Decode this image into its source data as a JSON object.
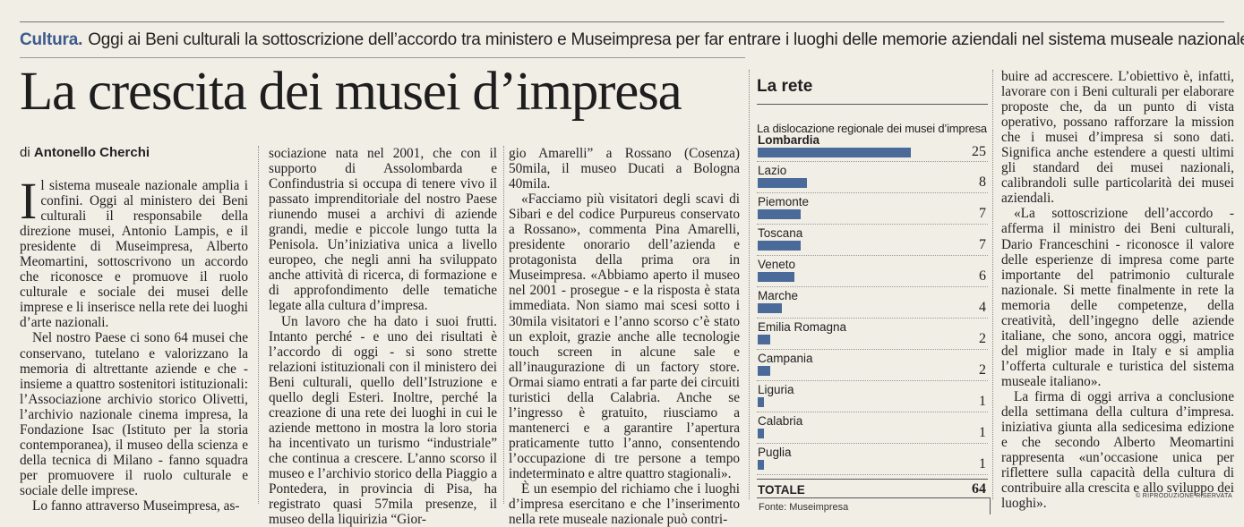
{
  "kicker": {
    "section": "Cultura.",
    "text": "Oggi ai Beni culturali la sottoscrizione dell’accordo tra ministero e Museimpresa per far entrare i luoghi delle memorie aziendali nel sistema museale nazionale"
  },
  "headline": "La crescita dei musei d’impresa",
  "byline": {
    "prefix": "di",
    "author": "Antonello Cherchi"
  },
  "article": {
    "dropcap": "I",
    "col1": [
      "l sistema museale nazionale amplia i confini. Oggi al ministero dei Beni culturali il responsabile della direzione musei, Antonio Lampis, e il presidente di Museimpresa, Alberto Meomartini, sottoscrivono un accordo che riconosce e promuove il ruolo culturale e sociale dei musei delle imprese e li inserisce nella rete dei luoghi d’arte nazionali.",
      "Nel nostro Paese ci sono 64 musei che conservano, tutelano e valorizzano la memoria di altrettante aziende e che - insieme a quattro sostenitori istituzionali: l’Associazione archivio storico Olivetti, l’archivio nazionale cinema impresa, la Fondazione Isac (Istituto per la storia contemporanea), il museo della scienza e della tecnica di Milano - fanno squadra per promuovere il ruolo culturale e sociale delle imprese.",
      "Lo fanno attraverso Museimpresa, as-"
    ],
    "col2": [
      "sociazione nata nel 2001, che con il supporto di Assolombarda e Confindustria si occupa di tenere vivo il passato imprenditoriale del nostro Paese riunendo musei a archivi di aziende grandi, medie e piccole lungo tutta la Penisola. Un’iniziativa unica a livello europeo, che negli anni ha sviluppato anche attività di ricerca, di formazione e di approfondimento delle tematiche legate alla cultura d’impresa.",
      "Un lavoro che ha dato i suoi frutti. Intanto perché - e uno dei risultati è l’accordo di oggi - si sono strette relazioni istituzionali con il ministero dei Beni culturali, quello dell’Istruzione e quello degli Esteri. Inoltre, perché la creazione di una rete dei luoghi in cui le aziende mettono in mostra la loro storia ha incentivato un turismo “industriale” che continua a crescere. L’anno scorso il museo e l’archivio storico della Piaggio a Pontedera, in provincia di Pisa, ha registrato quasi 57mila presenze, il museo della liquirizia “Gior-"
    ],
    "col3": [
      "gio Amarelli” a Rossano (Cosenza) 50mila, il museo Ducati a Bologna 40mila.",
      "«Facciamo più visitatori degli scavi di Sibari e del codice Purpureus conservato a Rossano», commenta Pina Amarelli, presidente onorario dell’azienda e protagonista della prima ora in Museimpresa. «Abbiamo aperto il museo nel 2001 - prosegue - e la risposta è stata immediata. Non siamo mai scesi sotto i 30mila visitatori e l’anno scorso c’è stato un exploit, grazie anche alle tecnologie touch screen in alcune sale e all’inaugurazione di un factory store. Ormai siamo entrati a far parte dei circuiti turistici della Calabria. Anche se l’ingresso è gratuito, riusciamo a mantenerci e a garantire l’apertura praticamente tutto l’anno, consentendo l’occupazione di tre persone a tempo indeterminato e altre quattro stagionali».",
      "È un esempio del richiamo che i luoghi d’impresa esercitano e che l’inserimento nella rete museale nazionale può contri-"
    ],
    "col4": [
      "buire ad accrescere. L’obiettivo è, infatti, lavorare con i Beni culturali per elaborare proposte che, da un punto di vista operativo, possano rafforzare la mission che i musei d’impresa si sono dati. Significa anche estendere a questi ultimi gli standard dei musei nazionali, calibrandoli sulle particolarità dei musei aziendali.",
      "«La sottoscrizione dell’accordo - afferma il ministro dei Beni culturali, Dario Franceschini - riconosce il valore delle esperienze di impresa come parte importante del patrimonio culturale nazionale. Si mette finalmente in rete la memoria delle competenze, della creatività, dell’ingegno delle aziende italiane, che sono, ancora oggi, matrice del miglior made in Italy e si amplia l’offerta culturale e turistica del sistema museale italiano».",
      "La firma di oggi arriva a conclusione della settimana della cultura d’impresa. iniziativa giunta alla sedicesima edizione e che secondo Alberto Meomartini rappresenta «un’occasione unica per riflettere sulla capacità della cultura di contribuire alla crescita e allo sviluppo dei luoghi»."
    ]
  },
  "sidebar": {
    "title": "La rete",
    "subtitle": "La dislocazione regionale dei musei d’impresa",
    "total_label": "TOTALE",
    "total_value": "64",
    "source": "Fonte: Museimpresa"
  },
  "chart_data": {
    "type": "bar",
    "orientation": "horizontal",
    "title": "La rete",
    "subtitle": "La dislocazione regionale dei musei d’impresa",
    "categories": [
      "Lombardia",
      "Lazio",
      "Piemonte",
      "Toscana",
      "Veneto",
      "Marche",
      "Emilia Romagna",
      "Campania",
      "Liguria",
      "Calabria",
      "Puglia"
    ],
    "values": [
      25,
      8,
      7,
      7,
      6,
      4,
      2,
      2,
      1,
      1,
      1
    ],
    "total": 64,
    "color": "#4a6a99",
    "xlim": [
      0,
      25
    ]
  },
  "colors": {
    "accent": "#3c5a8c",
    "bar": "#4a6a99",
    "background": "#f1eee6"
  },
  "copyright": "© RIPRODUZIONE RISERVATA"
}
